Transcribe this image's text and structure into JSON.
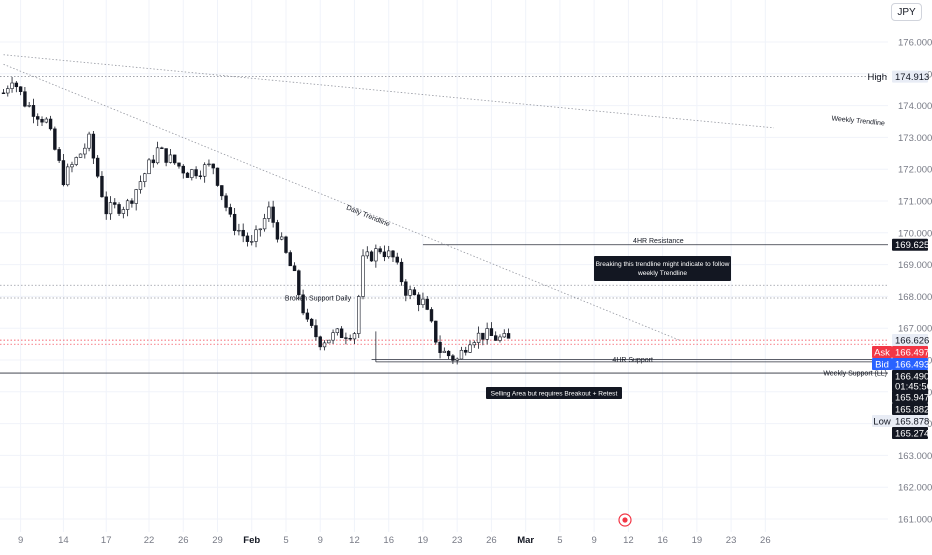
{
  "currency": "JPY",
  "colors": {
    "candle": "#131722",
    "grid": "#f0f3fa",
    "axis_text": "#787b86",
    "dotted": "#9598a1",
    "red_line": "#f23645",
    "ask": "#f23645",
    "bid": "#2962ff",
    "dark_label": "#131722",
    "light_label": "#e8ecf5",
    "event_icon": "#f23645"
  },
  "chart_data": {
    "type": "candlestick",
    "y_axis": {
      "range": [
        160.8,
        177.0
      ],
      "side": "right",
      "ticks": [
        "176.000",
        "175.000",
        "174.000",
        "173.000",
        "172.000",
        "171.000",
        "170.000",
        "169.000",
        "168.000",
        "167.000",
        "166.000",
        "165.000",
        "164.000",
        "163.000",
        "162.000",
        "161.000"
      ],
      "tick_values": [
        176,
        175,
        174,
        173,
        172,
        171,
        170,
        169,
        168,
        167,
        166,
        165,
        164,
        163,
        162,
        161
      ]
    },
    "x_axis": {
      "ticks": [
        "9",
        "14",
        "17",
        "22",
        "26",
        "29",
        "Feb",
        "5",
        "9",
        "12",
        "16",
        "19",
        "23",
        "26",
        "Mar",
        "5",
        "9",
        "12",
        "16",
        "19",
        "23",
        "26"
      ],
      "tick_index": [
        4,
        14,
        24,
        34,
        42,
        50,
        58,
        66,
        74,
        82,
        90,
        98,
        106,
        114,
        122,
        130,
        138,
        146,
        154,
        162,
        170,
        178
      ],
      "bold_ticks": [
        "Feb",
        "Mar"
      ],
      "bars_total": 182
    },
    "series": {
      "ohlc_keypoints": [
        [
          0,
          174.4
        ],
        [
          2,
          174.9
        ],
        [
          5,
          174.1
        ],
        [
          10,
          173.5
        ],
        [
          14,
          171.7
        ],
        [
          20,
          172.9
        ],
        [
          24,
          170.7
        ],
        [
          29,
          170.9
        ],
        [
          36,
          172.6
        ],
        [
          43,
          171.9
        ],
        [
          49,
          172.1
        ],
        [
          53,
          170.4
        ],
        [
          58,
          169.6
        ],
        [
          62,
          170.7
        ],
        [
          68,
          168.6
        ],
        [
          71,
          167.1
        ],
        [
          74,
          166.6
        ],
        [
          78,
          166.8
        ],
        [
          82,
          166.9
        ],
        [
          84,
          169.1
        ],
        [
          88,
          169.5
        ],
        [
          91,
          169.2
        ],
        [
          94,
          168.2
        ],
        [
          98,
          167.8
        ],
        [
          102,
          166.3
        ],
        [
          106,
          166.0
        ],
        [
          109,
          166.7
        ],
        [
          112,
          166.8
        ],
        [
          118,
          166.6
        ]
      ]
    },
    "levels": [
      {
        "name": "High",
        "value": 174.913,
        "label": "174.913",
        "style": "dotted"
      },
      {
        "name": "4HR Resistance",
        "value": 169.625,
        "label": "169.625",
        "style": "solid"
      },
      {
        "name": "Broken Support Daily",
        "value": 167.95,
        "style": "dotted"
      },
      {
        "name": "",
        "value": 168.35,
        "style": "dotted"
      },
      {
        "name": "4HR Support",
        "value": 166.02,
        "style": "solid"
      },
      {
        "name": "Weekly Support (LL)",
        "value": 165.59,
        "style": "solid"
      }
    ],
    "price_labels": [
      {
        "tag": "",
        "value": "166.626",
        "kind": "light"
      },
      {
        "tag": "Ask",
        "value": "166.497",
        "kind": "ask"
      },
      {
        "tag": "Bid",
        "value": "166.493",
        "kind": "bid"
      },
      {
        "tag": "",
        "value": "166.490",
        "kind": "dark"
      },
      {
        "tag": "",
        "value": "01:45:50",
        "kind": "dark"
      },
      {
        "tag": "",
        "value": "165.947",
        "kind": "dark"
      },
      {
        "tag": "",
        "value": "165.882",
        "kind": "dark"
      },
      {
        "tag": "Low",
        "value": "165.878",
        "kind": "light"
      },
      {
        "tag": "",
        "value": "165.274",
        "kind": "dark"
      }
    ],
    "trendlines": [
      {
        "name": "Weekly Trendline",
        "from": [
          0,
          175.6
        ],
        "to": [
          180,
          173.3
        ]
      },
      {
        "name": "Daily Trendline",
        "from": [
          0,
          175.3
        ],
        "to": [
          158,
          166.62
        ]
      }
    ],
    "annotations": [
      {
        "text": "Breaking this trendline might indicate to follow weekly Trendline",
        "lines": [
          "Breaking this trendline might indicate to follow",
          "weekly Trendline"
        ],
        "style": "dark-box"
      },
      {
        "text": "Selling Area but requires Breakout + Retest",
        "style": "dark-box"
      }
    ]
  }
}
